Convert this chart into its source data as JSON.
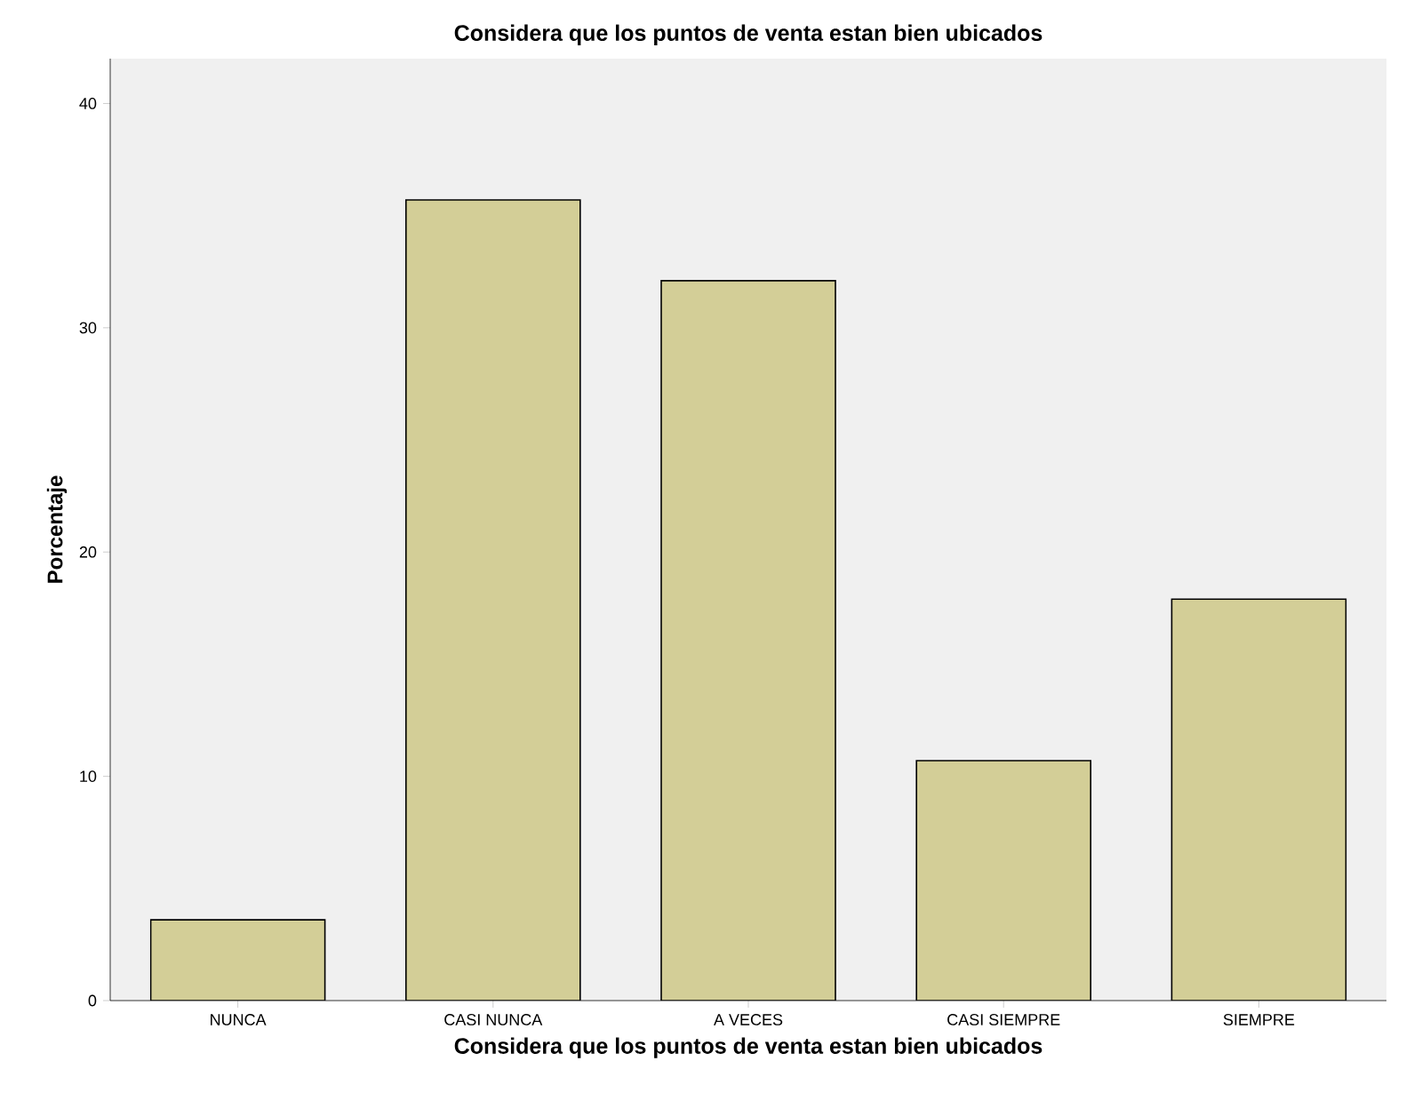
{
  "chart_data": {
    "type": "bar",
    "title": "Considera que los puntos de venta estan bien ubicados",
    "xlabel": "Considera que los puntos de venta estan bien ubicados",
    "ylabel": "Porcentaje",
    "categories": [
      "NUNCA",
      "CASI NUNCA",
      "A VECES",
      "CASI SIEMPRE",
      "SIEMPRE"
    ],
    "values": [
      3.6,
      35.7,
      32.1,
      10.7,
      17.9
    ],
    "color": "#d3ce97",
    "ylim": [
      0,
      42
    ],
    "yticks": [
      0,
      10,
      20,
      30,
      40
    ],
    "grid": false
  }
}
